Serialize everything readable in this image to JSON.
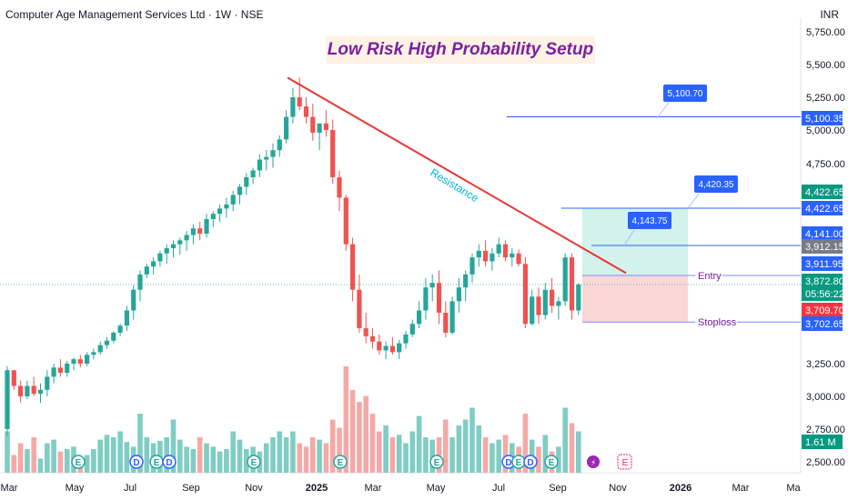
{
  "header": {
    "symbol": "Computer Age Management Services Ltd · 1W · NSE",
    "currency": "INR"
  },
  "annotations": {
    "setup_title": "Low Risk High Probability Setup",
    "resistance_label": "Resistance",
    "entry_label": "Entry",
    "stoploss_label": "Stoploss",
    "callouts": [
      "5,100.70",
      "4,420.35",
      "4,143.75"
    ]
  },
  "colors": {
    "up": "#26a69a",
    "down": "#ef5350",
    "resistance": "#e53935",
    "label_blue": "#2962ff",
    "setup_purple": "#7b1fa2"
  },
  "price_axis": {
    "ticks": [
      "5,750.00",
      "5,500.00",
      "5,250.00",
      "5,000.00",
      "4,750.00",
      "3,250.00",
      "3,000.00",
      "2,750.00",
      "2,500.00"
    ],
    "tags": [
      {
        "text": "5,100.35",
        "bg": "#2962ff"
      },
      {
        "text": "4,422.65",
        "bg": "#089981"
      },
      {
        "text": "4,422.65",
        "bg": "#2962ff"
      },
      {
        "text": "4,141.00",
        "bg": "#2962ff"
      },
      {
        "text": "3,912.15",
        "bg": "#787b86"
      },
      {
        "text": "3,911.95",
        "bg": "#2962ff"
      },
      {
        "text": "3,872.80",
        "bg": "#089981"
      },
      {
        "text": "05:56:22",
        "bg": "#089981"
      },
      {
        "text": "3,709.70",
        "bg": "#f23645"
      },
      {
        "text": "3,702.65",
        "bg": "#2962ff"
      },
      {
        "text": "1.61 M",
        "bg": "#089981"
      }
    ]
  },
  "time_axis": {
    "labels": [
      "Mar",
      "May",
      "Jul",
      "Sep",
      "Nov",
      "2025",
      "Mar",
      "May",
      "Jul",
      "Sep",
      "Nov",
      "2026",
      "Mar",
      "Ma"
    ]
  },
  "event_markers": {
    "earnings": "E",
    "dividend": "D",
    "split": "⚡"
  },
  "chart_data": {
    "type": "candlestick",
    "interval": "1W",
    "resistance_line": [
      {
        "date": "2024-11-25",
        "price": 5400
      },
      {
        "date": "2025-09-22",
        "price": 3920
      }
    ],
    "trade_setup": {
      "entry": 3912.15,
      "target": 4422.65,
      "stoploss": 3709.7,
      "levels": [
        5100.35,
        4141.0
      ]
    },
    "last_price": 3872.8,
    "last_volume": "1.61 M",
    "candles_approx": [
      [
        2750,
        3230,
        2700,
        3200
      ],
      [
        3200,
        3150,
        3050,
        3080
      ],
      [
        3080,
        3120,
        2950,
        3000
      ],
      [
        3000,
        3120,
        2980,
        3080
      ],
      [
        3080,
        3150,
        3000,
        3020
      ],
      [
        3020,
        3100,
        2950,
        3050
      ],
      [
        3050,
        3200,
        3000,
        3150
      ],
      [
        3150,
        3250,
        3100,
        3220
      ],
      [
        3220,
        3300,
        3150,
        3180
      ],
      [
        3180,
        3280,
        3150,
        3250
      ],
      [
        3250,
        3320,
        3200,
        3300
      ],
      [
        3300,
        3350,
        3220,
        3250
      ],
      [
        3250,
        3380,
        3230,
        3350
      ],
      [
        3350,
        3420,
        3300,
        3380
      ],
      [
        3380,
        3500,
        3350,
        3460
      ],
      [
        3460,
        3550,
        3420,
        3510
      ],
      [
        3510,
        3620,
        3480,
        3600
      ],
      [
        3600,
        3700,
        3560,
        3680
      ],
      [
        3680,
        3780,
        3620,
        3760
      ],
      [
        3760,
        3870,
        3720,
        3850
      ],
      [
        3850,
        3950,
        3800,
        3920
      ],
      [
        3920,
        4000,
        3900,
        3980
      ],
      [
        3980,
        4050,
        3920,
        4020
      ],
      [
        4020,
        4100,
        3980,
        4080
      ],
      [
        4080,
        4150,
        4000,
        4120
      ],
      [
        4120,
        4180,
        4050,
        4150
      ],
      [
        4150,
        4200,
        4070,
        4180
      ],
      [
        4180,
        4250,
        4100,
        4220
      ],
      [
        4220,
        4300,
        4150,
        4270
      ],
      [
        4270,
        4320,
        4180,
        4230
      ],
      [
        4230,
        4380,
        4200,
        4340
      ],
      [
        4340,
        4400,
        4280,
        4380
      ],
      [
        4380,
        4450,
        4320,
        4420
      ],
      [
        4420,
        4500,
        4350,
        4450
      ],
      [
        4450,
        4550,
        4400,
        4520
      ],
      [
        4520,
        4600,
        4450,
        4580
      ],
      [
        4580,
        4680,
        4520,
        4650
      ],
      [
        4650,
        4720,
        4600,
        4700
      ],
      [
        4700,
        4820,
        4650,
        4780
      ],
      [
        4780,
        4850,
        4700,
        4800
      ],
      [
        4800,
        4900,
        4720,
        4850
      ],
      [
        4850,
        4960,
        4800,
        4930
      ],
      [
        4930,
        5150,
        4900,
        5100
      ],
      [
        5100,
        5320,
        5050,
        5250
      ],
      [
        5250,
        5400,
        5150,
        5180
      ],
      [
        5180,
        5250,
        5050,
        5100
      ],
      [
        5100,
        5200,
        4920,
        4980
      ],
      [
        4980,
        5050,
        4850,
        5050
      ],
      [
        5050,
        5150,
        4950,
        5000
      ],
      [
        5000,
        5080,
        4600,
        4650
      ],
      [
        4650,
        4700,
        4400,
        4500
      ],
      [
        4500,
        4520,
        4100,
        4150
      ],
      [
        4150,
        4200,
        3800,
        3850
      ],
      [
        3850,
        3920,
        3600,
        3650
      ],
      [
        3650,
        3750,
        3480,
        3560
      ],
      [
        3560,
        3650,
        3420,
        3500
      ],
      [
        3500,
        3580,
        3350,
        3400
      ],
      [
        3400,
        3500,
        3300,
        3450
      ],
      [
        3450,
        3550,
        3350,
        3380
      ],
      [
        3380,
        3520,
        3300,
        3480
      ],
      [
        3480,
        3620,
        3420,
        3580
      ],
      [
        3580,
        3720,
        3550,
        3700
      ],
      [
        3700,
        3800,
        3650,
        3760
      ],
      [
        3760,
        3900,
        3720,
        3860
      ],
      [
        3860,
        3920,
        3800,
        3880
      ],
      [
        3880,
        3950,
        3700,
        3750
      ],
      [
        3750,
        3800,
        3550,
        3600
      ],
      [
        3600,
        3820,
        3580,
        3800
      ],
      [
        3800,
        3900,
        3750,
        3860
      ],
      [
        3860,
        3950,
        3800,
        3920
      ],
      [
        3920,
        4080,
        3880,
        4050
      ],
      [
        4050,
        4150,
        3980,
        4100
      ],
      [
        4100,
        4180,
        3980,
        4020
      ],
      [
        4020,
        4120,
        3950,
        4080
      ],
      [
        4080,
        4200,
        4050,
        4150
      ],
      [
        4150,
        4180,
        4020,
        4050
      ],
      [
        4050,
        4120,
        3980,
        4080
      ],
      [
        4080,
        4110,
        3980,
        4000
      ],
      [
        4000,
        4050,
        3650,
        3700
      ],
      [
        3700,
        3850,
        3680,
        3820
      ],
      [
        3820,
        3860,
        3700,
        3740
      ],
      [
        3740,
        3880,
        3720,
        3850
      ],
      [
        3850,
        3900,
        3750,
        3780
      ],
      [
        3780,
        3820,
        3720,
        3800
      ],
      [
        3800,
        4080,
        3780,
        4050
      ],
      [
        4050,
        4080,
        3720,
        3760
      ],
      [
        3760,
        3880,
        3740,
        3872.8
      ]
    ]
  }
}
